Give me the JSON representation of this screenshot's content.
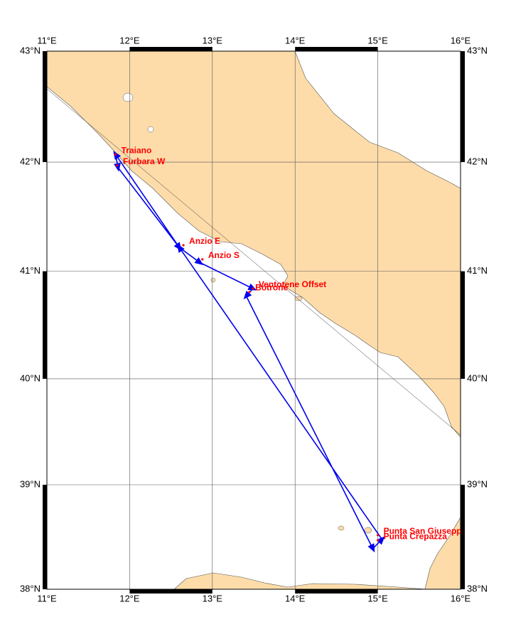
{
  "map": {
    "xlim": [
      11,
      16
    ],
    "ylim": [
      38,
      43
    ],
    "xticks": [
      {
        "value": 11,
        "label": "11°E"
      },
      {
        "value": 12,
        "label": "12°E"
      },
      {
        "value": 13,
        "label": "13°E"
      },
      {
        "value": 14,
        "label": "14°E"
      },
      {
        "value": 15,
        "label": "15°E"
      },
      {
        "value": 16,
        "label": "16°E"
      }
    ],
    "yticks": [
      {
        "value": 38,
        "label": "38°N"
      },
      {
        "value": 39,
        "label": "39°N"
      },
      {
        "value": 40,
        "label": "40°N"
      },
      {
        "value": 41,
        "label": "41°N"
      },
      {
        "value": 42,
        "label": "42°N"
      },
      {
        "value": 43,
        "label": "43°N"
      }
    ],
    "track_color": "#0000ee",
    "label_color": "#ff0000",
    "track": {
      "lon": [
        11.83,
        11.86,
        12.6,
        12.85,
        13.49,
        13.41,
        14.94,
        15.05,
        12.6,
        11.83
      ],
      "lat": [
        42.07,
        41.95,
        41.22,
        41.08,
        40.84,
        40.77,
        38.39,
        38.48,
        41.22,
        42.07
      ]
    },
    "stations": [
      {
        "name": "Traiano",
        "lon": 11.83,
        "lat": 42.07
      },
      {
        "name": "Furbara W",
        "lon": 11.85,
        "lat": 41.97
      },
      {
        "name": "Anzio E",
        "lon": 12.65,
        "lat": 41.24
      },
      {
        "name": "Anzio S",
        "lon": 12.88,
        "lat": 41.11
      },
      {
        "name": "Ventotene Offset",
        "lon": 13.49,
        "lat": 40.84
      },
      {
        "name": "Botrone",
        "lon": 13.45,
        "lat": 40.81
      },
      {
        "name": "Punta San Giusepp",
        "lon": 15.0,
        "lat": 38.52
      },
      {
        "name": "Punta Crepazza",
        "lon": 15.0,
        "lat": 38.47
      }
    ]
  }
}
